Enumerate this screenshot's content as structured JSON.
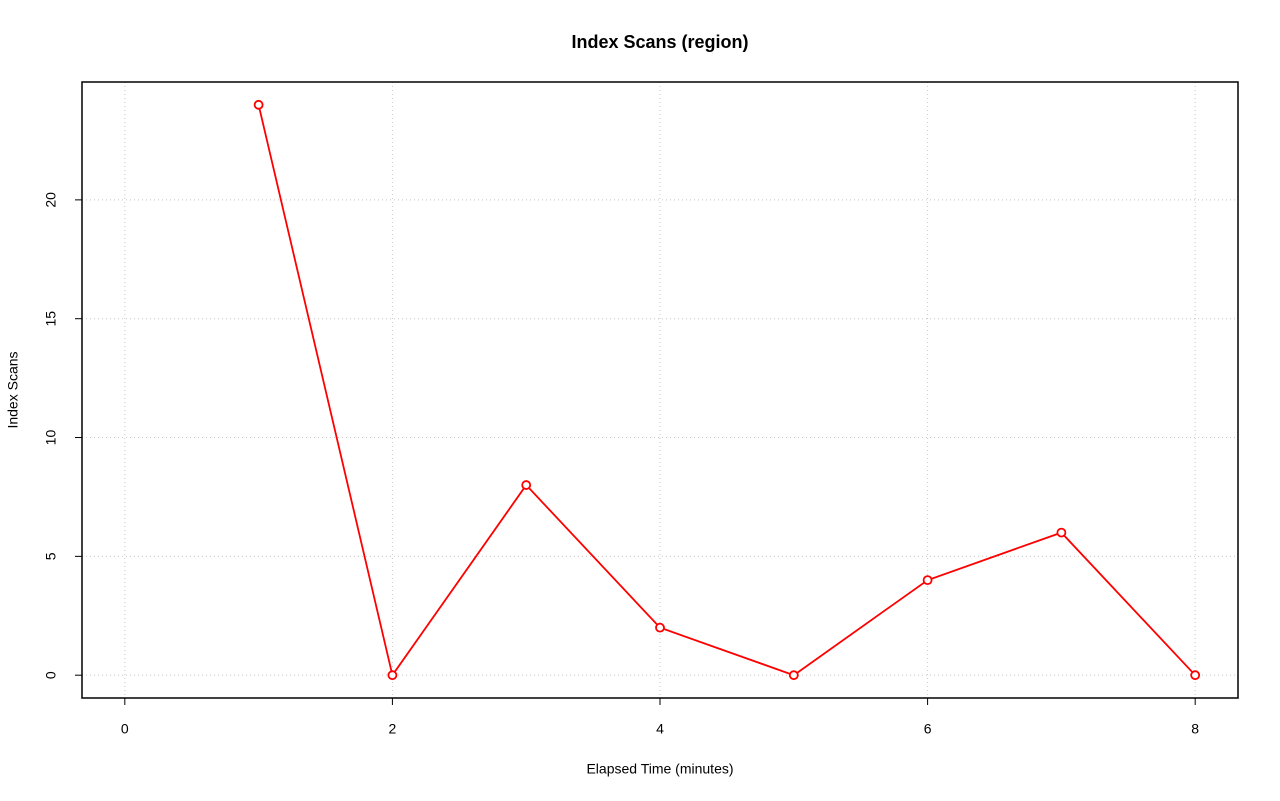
{
  "chart_data": {
    "type": "line",
    "title": "Index Scans (region)",
    "x_label": "Elapsed Time (minutes)",
    "y_label": "Index Scans",
    "x": [
      1,
      2,
      3,
      4,
      5,
      6,
      7,
      8
    ],
    "series": [
      {
        "name": "Index Scans",
        "color": "#ff0000",
        "values": [
          24,
          0,
          8,
          2,
          0,
          4,
          6,
          0
        ]
      }
    ],
    "xlim": [
      -0.32,
      8.32
    ],
    "xticks": [
      0,
      2,
      4,
      6,
      8
    ],
    "ylim": [
      -0.96,
      24.96
    ],
    "yticks": [
      0,
      5,
      10,
      15,
      20
    ],
    "grid": true
  }
}
